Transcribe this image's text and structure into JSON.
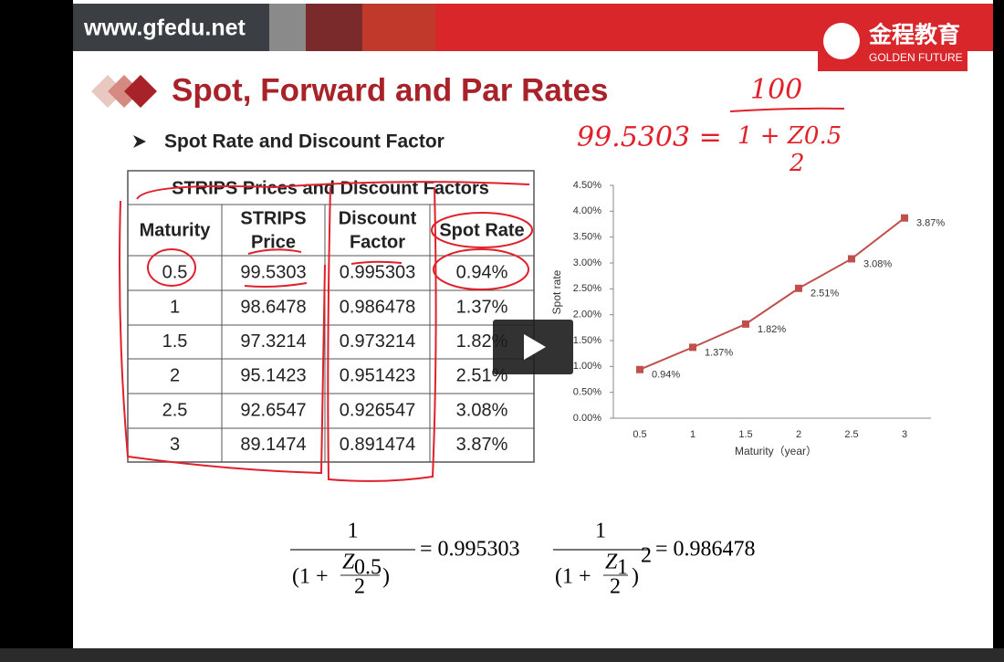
{
  "header": {
    "url": "www.gfedu.net",
    "logo_cn": "金程教育",
    "logo_en": "GOLDEN FUTURE"
  },
  "slide": {
    "title": "Spot, Forward and Par Rates",
    "bullet": "Spot Rate and Discount Factor"
  },
  "table": {
    "title": "STRIPS Prices and Discount Factors",
    "headers": [
      [
        "Maturity"
      ],
      [
        "STRIPS",
        "Price"
      ],
      [
        "Discount",
        "Factor"
      ],
      [
        "Spot Rate"
      ]
    ],
    "rows": [
      [
        "0.5",
        "99.5303",
        "0.995303",
        "0.94%"
      ],
      [
        "1",
        "98.6478",
        "0.986478",
        "1.37%"
      ],
      [
        "1.5",
        "97.3214",
        "0.973214",
        "1.82%"
      ],
      [
        "2",
        "95.1423",
        "0.951423",
        "2.51%"
      ],
      [
        "2.5",
        "92.6547",
        "0.926547",
        "3.08%"
      ],
      [
        "3",
        "89.1474",
        "0.891474",
        "3.87%"
      ]
    ]
  },
  "chart_data": {
    "type": "line",
    "x_label": "Maturity（year）",
    "y_label": "Spot rate",
    "categories": [
      "0.5",
      "1",
      "1.5",
      "2",
      "2.5",
      "3"
    ],
    "series": [
      {
        "color": "#c0504d",
        "values": [
          0.94,
          1.37,
          1.82,
          2.51,
          3.08,
          3.87
        ],
        "value_labels": [
          "0.94%",
          "1.37%",
          "1.82%",
          "2.51%",
          "3.08%",
          "3.87%"
        ]
      }
    ],
    "ylim": [
      0,
      4.5
    ],
    "yticks": [
      {
        "value": 0,
        "label": "0.00%"
      },
      {
        "value": 0.5,
        "label": "0.50%"
      },
      {
        "value": 1,
        "label": "1.00%"
      },
      {
        "value": 1.5,
        "label": "1.50%"
      },
      {
        "value": 2,
        "label": "2.00%"
      },
      {
        "value": 2.5,
        "label": "2.50%"
      },
      {
        "value": 3,
        "label": "3.00%"
      },
      {
        "value": 3.5,
        "label": "3.50%"
      },
      {
        "value": 4,
        "label": "4.00%"
      },
      {
        "value": 4.5,
        "label": "4.50%"
      }
    ],
    "grid": false
  },
  "formulas": [
    {
      "numerator": "1",
      "left": "(1 +",
      "var": "Z",
      "sub": "0.5",
      "den": "2",
      "right": ")",
      "result": "= 0.995303"
    },
    {
      "numerator": "1",
      "left": "(1 +",
      "var": "Z",
      "sub": "1",
      "den": "2",
      "right": ")",
      "power": "2",
      "result": "= 0.986478"
    }
  ],
  "handwriting": {
    "numerator": "100",
    "left": "99.5303 =",
    "denominator": "1 + Z0.5",
    "divisor": "2"
  }
}
